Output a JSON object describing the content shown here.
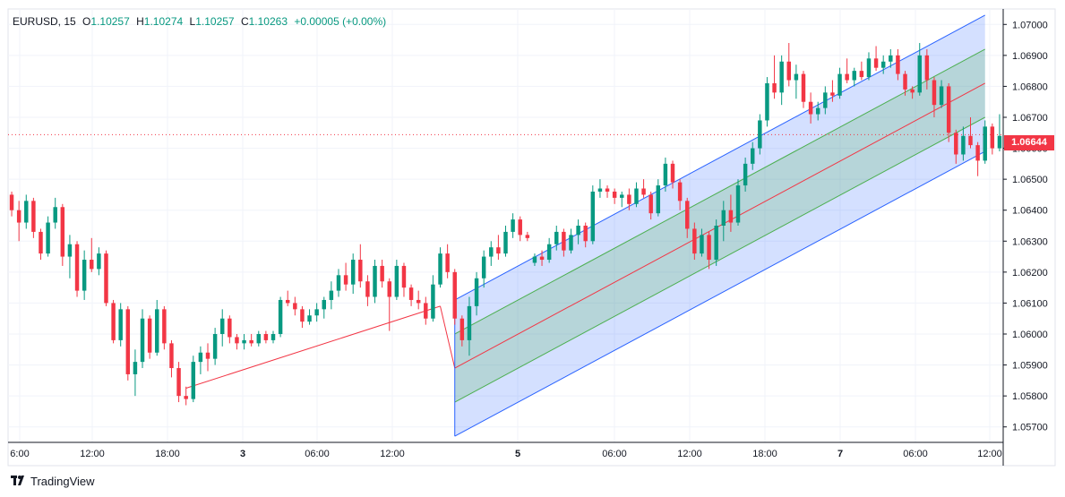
{
  "legend": {
    "symbol": "EURUSD",
    "interval": "15",
    "open_label": "O",
    "open": "1.10257",
    "high_label": "H",
    "high": "1.10274",
    "low_label": "L",
    "low": "1.10257",
    "close_label": "C",
    "close": "1.10263",
    "change": "+0.00005 (+0.00%)"
  },
  "last_price_tag": "1.06644",
  "brand": {
    "name": "TradingView",
    "icon": "tradingview-logo-icon"
  },
  "colors": {
    "up": "#089981",
    "down": "#f23645",
    "channel_outer": "#2962ff",
    "channel_inner": "#4caf50",
    "channel_mid": "#f23645",
    "grid": "#f0f3fa",
    "axis_text": "#131722"
  },
  "chart_data": {
    "type": "candlestick",
    "symbol": "EURUSD",
    "interval": "15",
    "ylim": [
      1.0565,
      1.0705
    ],
    "y_ticks": [
      "1.07000",
      "1.06900",
      "1.06800",
      "1.06700",
      "1.06600",
      "1.06500",
      "1.06400",
      "1.06300",
      "1.06200",
      "1.06100",
      "1.06000",
      "1.05900",
      "1.05800",
      "1.05700"
    ],
    "x_ticks": [
      "6:00",
      "12:00",
      "18:00",
      "3",
      "06:00",
      "12:00",
      "5",
      "06:00",
      "12:00",
      "18:00",
      "7",
      "06:00",
      "12:00"
    ],
    "grid": true,
    "drawings": {
      "regression_trend": {
        "start": {
          "bar": 24,
          "price": 1.05825
        },
        "end": {
          "bar": 59,
          "price": 1.0609
        },
        "color": "#f23645"
      },
      "regression_channel": {
        "start_bar": 61,
        "end_bar": 133,
        "mid_start": 1.0589,
        "mid_end": 1.0681,
        "upper_offset": 0.0022,
        "inner_offset": 0.0011,
        "outer_color": "#2962ff",
        "inner_color": "#4caf50",
        "mid_color": "#f23645"
      }
    },
    "ohlc": [
      [
        1.0645,
        1.0646,
        1.0638,
        1.064
      ],
      [
        1.064,
        1.0643,
        1.063,
        1.0636
      ],
      [
        1.0636,
        1.0645,
        1.0634,
        1.0643
      ],
      [
        1.0643,
        1.0644,
        1.0631,
        1.0633
      ],
      [
        1.0633,
        1.0634,
        1.0624,
        1.0626
      ],
      [
        1.0626,
        1.0638,
        1.0625,
        1.0636
      ],
      [
        1.0636,
        1.0644,
        1.0634,
        1.0641
      ],
      [
        1.0641,
        1.0642,
        1.0622,
        1.0625
      ],
      [
        1.0625,
        1.0632,
        1.0618,
        1.0629
      ],
      [
        1.0629,
        1.063,
        1.0612,
        1.0614
      ],
      [
        1.0614,
        1.0627,
        1.0611,
        1.0624
      ],
      [
        1.0624,
        1.0631,
        1.062,
        1.0621
      ],
      [
        1.0621,
        1.0628,
        1.0619,
        1.0626
      ],
      [
        1.0626,
        1.0627,
        1.0609,
        1.061
      ],
      [
        1.061,
        1.0611,
        1.0597,
        1.0598
      ],
      [
        1.0598,
        1.061,
        1.0596,
        1.0608
      ],
      [
        1.0608,
        1.0609,
        1.0585,
        1.0587
      ],
      [
        1.0587,
        1.0595,
        1.058,
        1.0591
      ],
      [
        1.0591,
        1.0608,
        1.0589,
        1.0605
      ],
      [
        1.0605,
        1.0606,
        1.0592,
        1.0594
      ],
      [
        1.0594,
        1.0611,
        1.0593,
        1.0608
      ],
      [
        1.0608,
        1.0609,
        1.0595,
        1.0597
      ],
      [
        1.0597,
        1.0598,
        1.0586,
        1.0589
      ],
      [
        1.0589,
        1.0591,
        1.0578,
        1.058
      ],
      [
        1.058,
        1.0583,
        1.0577,
        1.0579
      ],
      [
        1.0579,
        1.0593,
        1.0578,
        1.0591
      ],
      [
        1.0591,
        1.0596,
        1.0587,
        1.0594
      ],
      [
        1.0594,
        1.0597,
        1.0588,
        1.0592
      ],
      [
        1.0592,
        1.0602,
        1.059,
        1.06
      ],
      [
        1.06,
        1.0608,
        1.0596,
        1.0605
      ],
      [
        1.0605,
        1.0606,
        1.0597,
        1.0599
      ],
      [
        1.0599,
        1.06,
        1.0595,
        1.0597
      ],
      [
        1.0597,
        1.06,
        1.0595,
        1.0598
      ],
      [
        1.0598,
        1.06,
        1.0596,
        1.0597
      ],
      [
        1.0597,
        1.0601,
        1.0596,
        1.06
      ],
      [
        1.06,
        1.0601,
        1.0597,
        1.0598
      ],
      [
        1.0598,
        1.0601,
        1.0597,
        1.06
      ],
      [
        1.06,
        1.0612,
        1.0599,
        1.0611
      ],
      [
        1.0611,
        1.0614,
        1.0609,
        1.061
      ],
      [
        1.061,
        1.0612,
        1.0606,
        1.0608
      ],
      [
        1.0608,
        1.0609,
        1.0602,
        1.0604
      ],
      [
        1.0604,
        1.0608,
        1.0603,
        1.0606
      ],
      [
        1.0606,
        1.061,
        1.0604,
        1.0608
      ],
      [
        1.0608,
        1.0612,
        1.0605,
        1.0611
      ],
      [
        1.0611,
        1.0617,
        1.0608,
        1.0614
      ],
      [
        1.0614,
        1.0621,
        1.0612,
        1.0619
      ],
      [
        1.0619,
        1.0623,
        1.0614,
        1.0616
      ],
      [
        1.0616,
        1.0626,
        1.0613,
        1.0624
      ],
      [
        1.0624,
        1.0629,
        1.0615,
        1.0617
      ],
      [
        1.0617,
        1.0619,
        1.0609,
        1.0612
      ],
      [
        1.0612,
        1.0624,
        1.061,
        1.0622
      ],
      [
        1.0622,
        1.0624,
        1.0615,
        1.0617
      ],
      [
        1.0617,
        1.0618,
        1.0601,
        1.0612
      ],
      [
        1.0612,
        1.0624,
        1.0611,
        1.0622
      ],
      [
        1.0622,
        1.0623,
        1.0612,
        1.0615
      ],
      [
        1.0615,
        1.0616,
        1.0609,
        1.0611
      ],
      [
        1.0611,
        1.0614,
        1.0608,
        1.061
      ],
      [
        1.061,
        1.0612,
        1.0603,
        1.0605
      ],
      [
        1.0605,
        1.0619,
        1.0604,
        1.0616
      ],
      [
        1.0616,
        1.0628,
        1.0615,
        1.0626
      ],
      [
        1.0626,
        1.0629,
        1.0618,
        1.062
      ],
      [
        1.062,
        1.0621,
        1.0603,
        1.0605
      ],
      [
        1.0605,
        1.0606,
        1.0596,
        1.0598
      ],
      [
        1.0598,
        1.0612,
        1.0593,
        1.0609
      ],
      [
        1.0609,
        1.062,
        1.0606,
        1.0618
      ],
      [
        1.0618,
        1.0627,
        1.0615,
        1.0625
      ],
      [
        1.0625,
        1.063,
        1.0622,
        1.0628
      ],
      [
        1.0628,
        1.0632,
        1.0624,
        1.0626
      ],
      [
        1.0626,
        1.0635,
        1.0625,
        1.0633
      ],
      [
        1.0633,
        1.0639,
        1.0631,
        1.0637
      ],
      [
        1.0637,
        1.0638,
        1.063,
        1.0632
      ],
      [
        1.0632,
        1.0633,
        1.063,
        1.0631
      ],
      [
        1.0623,
        1.0626,
        1.0622,
        1.0625
      ],
      [
        1.0625,
        1.0627,
        1.0622,
        1.0624
      ],
      [
        1.0624,
        1.0631,
        1.0623,
        1.0629
      ],
      [
        1.0629,
        1.0635,
        1.0627,
        1.0633
      ],
      [
        1.0633,
        1.0634,
        1.0625,
        1.0627
      ],
      [
        1.0627,
        1.0634,
        1.0626,
        1.0632
      ],
      [
        1.0632,
        1.0637,
        1.0629,
        1.0635
      ],
      [
        1.0635,
        1.0636,
        1.0628,
        1.063
      ],
      [
        1.063,
        1.0648,
        1.0629,
        1.0646
      ],
      [
        1.0646,
        1.065,
        1.0644,
        1.0647
      ],
      [
        1.0647,
        1.0648,
        1.0644,
        1.0646
      ],
      [
        1.0646,
        1.0647,
        1.0642,
        1.0644
      ],
      [
        1.0644,
        1.0646,
        1.0641,
        1.0645
      ],
      [
        1.0645,
        1.0647,
        1.064,
        1.0642
      ],
      [
        1.0642,
        1.0649,
        1.0641,
        1.0647
      ],
      [
        1.0647,
        1.065,
        1.0644,
        1.0645
      ],
      [
        1.0645,
        1.0646,
        1.0637,
        1.0639
      ],
      [
        1.0639,
        1.065,
        1.0638,
        1.0648
      ],
      [
        1.0648,
        1.0657,
        1.0646,
        1.0655
      ],
      [
        1.0655,
        1.0656,
        1.0647,
        1.0649
      ],
      [
        1.0649,
        1.065,
        1.064,
        1.0643
      ],
      [
        1.0643,
        1.0644,
        1.0631,
        1.0634
      ],
      [
        1.0634,
        1.0636,
        1.0624,
        1.0626
      ],
      [
        1.0626,
        1.0634,
        1.0625,
        1.0632
      ],
      [
        1.0632,
        1.0633,
        1.0621,
        1.0624
      ],
      [
        1.0624,
        1.0637,
        1.0622,
        1.0635
      ],
      [
        1.0635,
        1.0643,
        1.063,
        1.064
      ],
      [
        1.064,
        1.0645,
        1.0633,
        1.0636
      ],
      [
        1.0636,
        1.065,
        1.0635,
        1.0648
      ],
      [
        1.0648,
        1.0657,
        1.0646,
        1.0655
      ],
      [
        1.0655,
        1.0662,
        1.0653,
        1.066
      ],
      [
        1.066,
        1.0671,
        1.0658,
        1.0669
      ],
      [
        1.0669,
        1.0683,
        1.0667,
        1.0681
      ],
      [
        1.0681,
        1.069,
        1.0676,
        1.0678
      ],
      [
        1.0678,
        1.069,
        1.0674,
        1.0688
      ],
      [
        1.0688,
        1.0694,
        1.068,
        1.0682
      ],
      [
        1.0682,
        1.0687,
        1.0676,
        1.0684
      ],
      [
        1.0684,
        1.0685,
        1.0673,
        1.0675
      ],
      [
        1.0675,
        1.0678,
        1.0668,
        1.0671
      ],
      [
        1.0671,
        1.0675,
        1.0669,
        1.0673
      ],
      [
        1.0673,
        1.068,
        1.0671,
        1.0678
      ],
      [
        1.0678,
        1.0682,
        1.0675,
        1.0677
      ],
      [
        1.0677,
        1.0686,
        1.0676,
        1.0684
      ],
      [
        1.0684,
        1.0689,
        1.0681,
        1.0682
      ],
      [
        1.0682,
        1.0686,
        1.068,
        1.0685
      ],
      [
        1.0685,
        1.0688,
        1.0682,
        1.0683
      ],
      [
        1.0683,
        1.0691,
        1.0682,
        1.0689
      ],
      [
        1.0689,
        1.0693,
        1.0685,
        1.0686
      ],
      [
        1.0686,
        1.069,
        1.0684,
        1.0688
      ],
      [
        1.0688,
        1.0692,
        1.0686,
        1.069
      ],
      [
        1.069,
        1.0692,
        1.0682,
        1.0684
      ],
      [
        1.0684,
        1.0685,
        1.0677,
        1.0679
      ],
      [
        1.0679,
        1.068,
        1.0676,
        1.0678
      ],
      [
        1.0678,
        1.0694,
        1.0677,
        1.069
      ],
      [
        1.069,
        1.0692,
        1.0679,
        1.0682
      ],
      [
        1.0682,
        1.0683,
        1.067,
        1.0674
      ],
      [
        1.0674,
        1.0682,
        1.0673,
        1.068
      ],
      [
        1.068,
        1.0681,
        1.0662,
        1.0665
      ],
      [
        1.0665,
        1.0666,
        1.0655,
        1.0658
      ],
      [
        1.0658,
        1.0667,
        1.0656,
        1.0664
      ],
      [
        1.0664,
        1.067,
        1.066,
        1.0661
      ],
      [
        1.0661,
        1.0662,
        1.0651,
        1.0656
      ],
      [
        1.0656,
        1.0669,
        1.0655,
        1.0667
      ],
      [
        1.0667,
        1.0668,
        1.0658,
        1.066
      ],
      [
        1.066,
        1.0671,
        1.0659,
        1.0664
      ]
    ]
  }
}
